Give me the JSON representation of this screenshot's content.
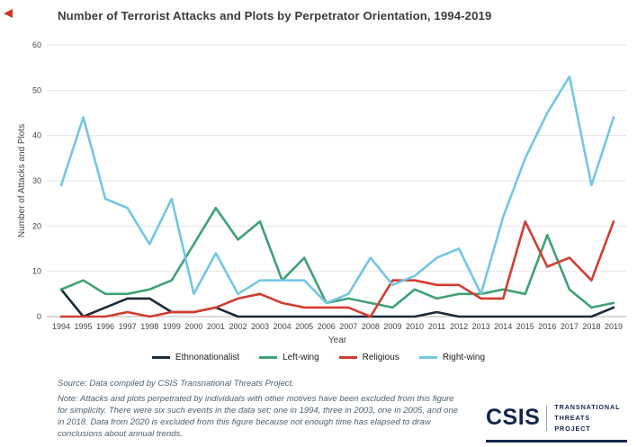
{
  "page": {
    "title": "Number of Terrorist Attacks and Plots by Perpetrator Orientation, 1994-2019"
  },
  "chart_data": {
    "type": "line",
    "title": "Number of Terrorist Attacks and Plots by Perpetrator Orientation, 1994-2019",
    "xlabel": "Year",
    "ylabel": "Number of Attacks and Plots",
    "ylim": [
      0,
      60
    ],
    "yticks": [
      0,
      10,
      20,
      30,
      40,
      50,
      60
    ],
    "grid": true,
    "legend_position": "bottom",
    "x": [
      1994,
      1995,
      1996,
      1997,
      1998,
      1999,
      2000,
      2001,
      2002,
      2003,
      2004,
      2005,
      2006,
      2007,
      2008,
      2009,
      2010,
      2011,
      2012,
      2013,
      2014,
      2015,
      2016,
      2017,
      2018,
      2019
    ],
    "series": [
      {
        "name": "Ethnonationalist",
        "color": "#1c2b3a",
        "values": [
          6,
          0,
          2,
          4,
          4,
          1,
          1,
          2,
          0,
          0,
          0,
          0,
          0,
          0,
          0,
          0,
          0,
          1,
          0,
          0,
          0,
          0,
          0,
          0,
          0,
          2
        ]
      },
      {
        "name": "Left-wing",
        "color": "#3fa173",
        "values": [
          6,
          8,
          5,
          5,
          6,
          8,
          16,
          24,
          17,
          21,
          8,
          13,
          3,
          4,
          3,
          2,
          6,
          4,
          5,
          5,
          6,
          5,
          18,
          6,
          2,
          3
        ]
      },
      {
        "name": "Religious",
        "color": "#d23d30",
        "values": [
          0,
          0,
          0,
          1,
          0,
          1,
          1,
          2,
          4,
          5,
          3,
          2,
          2,
          2,
          0,
          8,
          8,
          7,
          7,
          4,
          4,
          21,
          11,
          13,
          8,
          21
        ]
      },
      {
        "name": "Right-wing",
        "color": "#74c6e4",
        "values": [
          29,
          44,
          26,
          24,
          16,
          26,
          5,
          14,
          5,
          8,
          8,
          8,
          3,
          5,
          13,
          7,
          9,
          13,
          15,
          5,
          22,
          35,
          45,
          53,
          29,
          44
        ]
      }
    ]
  },
  "footer": {
    "source": "Source: Data compiled by CSIS Transnational Threats Project.",
    "note": "Note: Attacks and plots perpetrated by individuals with other motives have been excluded from this figure for simplicity. There were six such events in the data set: one in 1994, three in 2003, one in 2005, and one in 2018. Data from 2020 is excluded from this figure because not enough time has elapsed to draw conclusions about annual trends."
  },
  "logo": {
    "acronym": "CSIS",
    "program_line1": "TRANSNATIONAL",
    "program_line2": "THREATS PROJECT"
  }
}
